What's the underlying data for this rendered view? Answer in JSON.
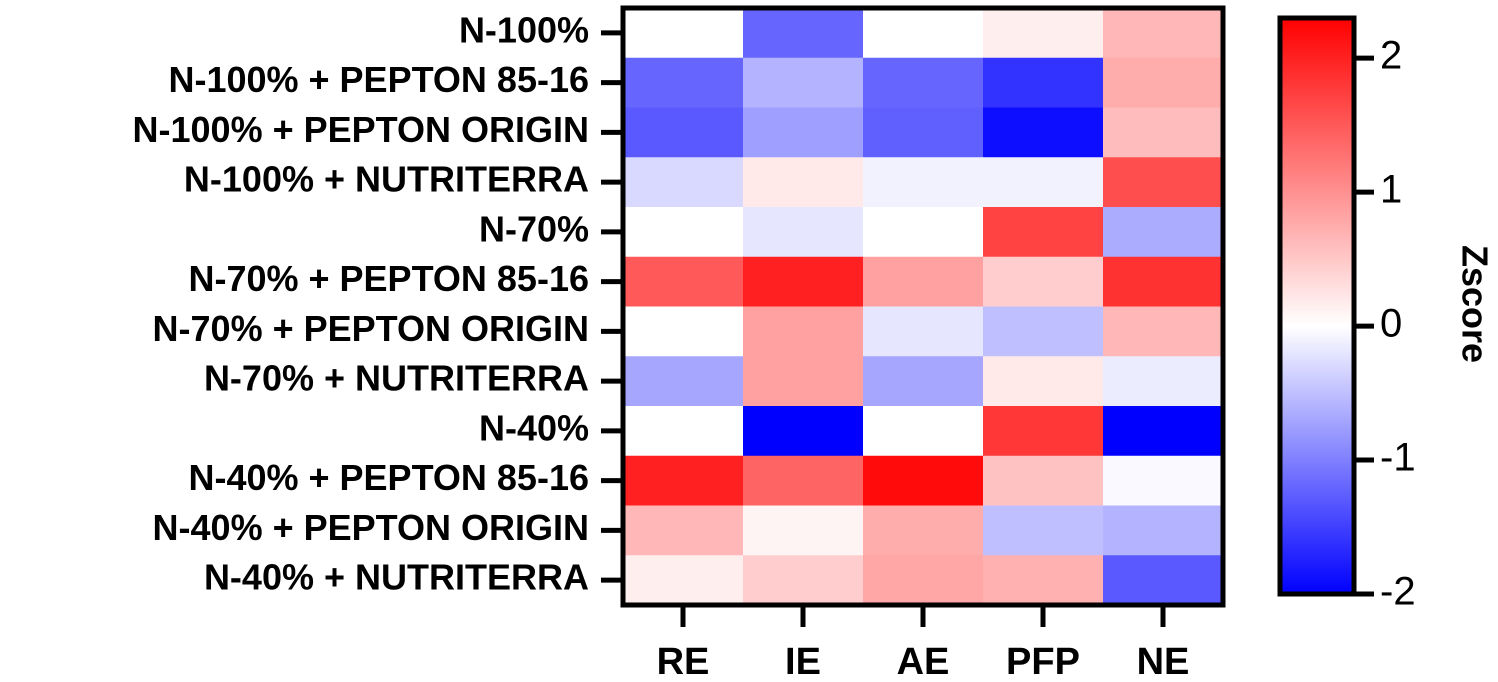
{
  "chart_data": {
    "type": "heatmap",
    "title": "",
    "xlabel": "",
    "ylabel": "",
    "x": [
      "RE",
      "IE",
      "AE",
      "PFP",
      "NE"
    ],
    "y": [
      "N-100%",
      "N-100% + PEPTON 85-16",
      "N-100% + PEPTON ORIGIN",
      "N-100% + NUTRITERRA",
      "N-70%",
      "N-70% + PEPTON 85-16",
      "N-70% + PEPTON ORIGIN",
      "N-70% + NUTRITERRA",
      "N-40%",
      "N-40% + PEPTON 85-16",
      "N-40% + PEPTON ORIGIN",
      "N-40% + NUTRITERRA"
    ],
    "values": [
      [
        0.0,
        -1.2,
        0.0,
        0.15,
        0.65
      ],
      [
        -1.2,
        -0.6,
        -1.2,
        -1.6,
        0.75
      ],
      [
        -1.3,
        -0.75,
        -1.25,
        -1.9,
        0.6
      ],
      [
        -0.3,
        0.2,
        -0.1,
        -0.1,
        1.6
      ],
      [
        0.0,
        -0.2,
        0.0,
        1.7,
        -0.65
      ],
      [
        1.5,
        2.0,
        0.85,
        0.45,
        1.85
      ],
      [
        0.0,
        0.85,
        -0.2,
        -0.5,
        0.65
      ],
      [
        -0.7,
        0.85,
        -0.7,
        0.2,
        -0.15
      ],
      [
        0.0,
        -2.0,
        0.0,
        1.8,
        -2.0
      ],
      [
        2.0,
        1.4,
        2.2,
        0.55,
        -0.05
      ],
      [
        0.65,
        0.1,
        0.75,
        -0.5,
        -0.6
      ],
      [
        0.15,
        0.45,
        0.8,
        0.7,
        -1.3
      ]
    ],
    "colorbar": {
      "label": "Zscore",
      "min": -2.0,
      "max": 2.3,
      "ticks": [
        2,
        1,
        0,
        -1,
        -2
      ],
      "colors": {
        "low": "#0000FF",
        "mid": "#FFFFFF",
        "high": "#FF0000"
      }
    }
  }
}
